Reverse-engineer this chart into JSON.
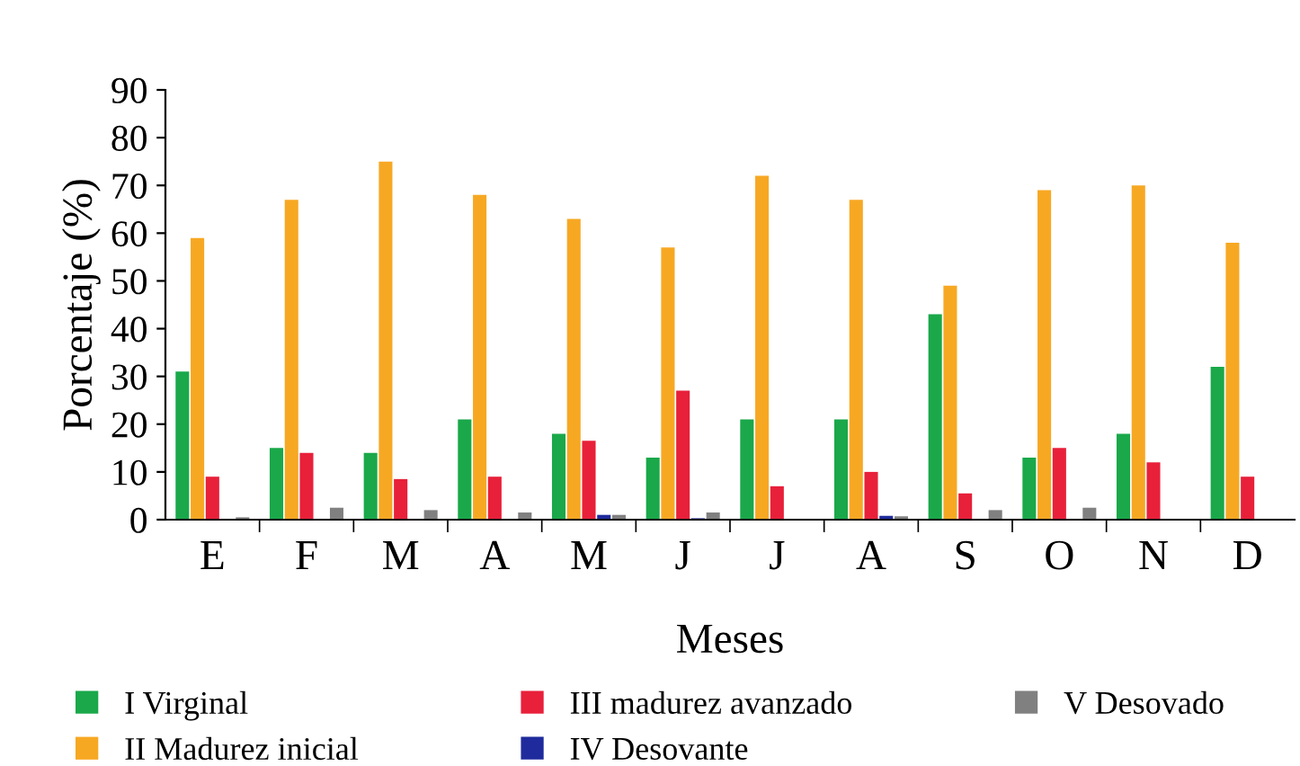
{
  "chart_data": {
    "type": "bar",
    "xlabel": "Meses",
    "ylabel": "Porcentaje (%)",
    "categories": [
      "E",
      "F",
      "M",
      "A",
      "M",
      "J",
      "J",
      "A",
      "S",
      "O",
      "N",
      "D"
    ],
    "series": [
      {
        "name": "I Virginal",
        "color": "#1aa84a",
        "values": [
          31,
          15,
          14,
          21,
          18,
          13,
          21,
          21,
          43,
          13,
          18,
          32
        ]
      },
      {
        "name": "II Madurez inicial",
        "color": "#f7a823",
        "values": [
          59,
          67,
          75,
          68,
          63,
          57,
          72,
          67,
          49,
          69,
          70,
          58
        ]
      },
      {
        "name": "III madurez avanzado",
        "color": "#e8203a",
        "values": [
          9,
          14,
          8.5,
          9,
          16.5,
          27,
          7,
          10,
          5.5,
          15,
          12,
          9
        ]
      },
      {
        "name": "IV Desovante",
        "color": "#1f2b9c",
        "values": [
          0,
          0,
          0,
          0,
          1,
          0.3,
          0,
          0.8,
          0,
          0,
          0,
          0
        ]
      },
      {
        "name": "V Desovado",
        "color": "#808080",
        "values": [
          0.5,
          2.5,
          2,
          1.5,
          1,
          1.5,
          0,
          0.7,
          2,
          2.5,
          0,
          0
        ]
      }
    ],
    "ylim": [
      0,
      90
    ],
    "yticks": [
      0,
      10,
      20,
      30,
      40,
      50,
      60,
      70,
      80,
      90
    ],
    "grid": false,
    "legend": "bottom"
  }
}
